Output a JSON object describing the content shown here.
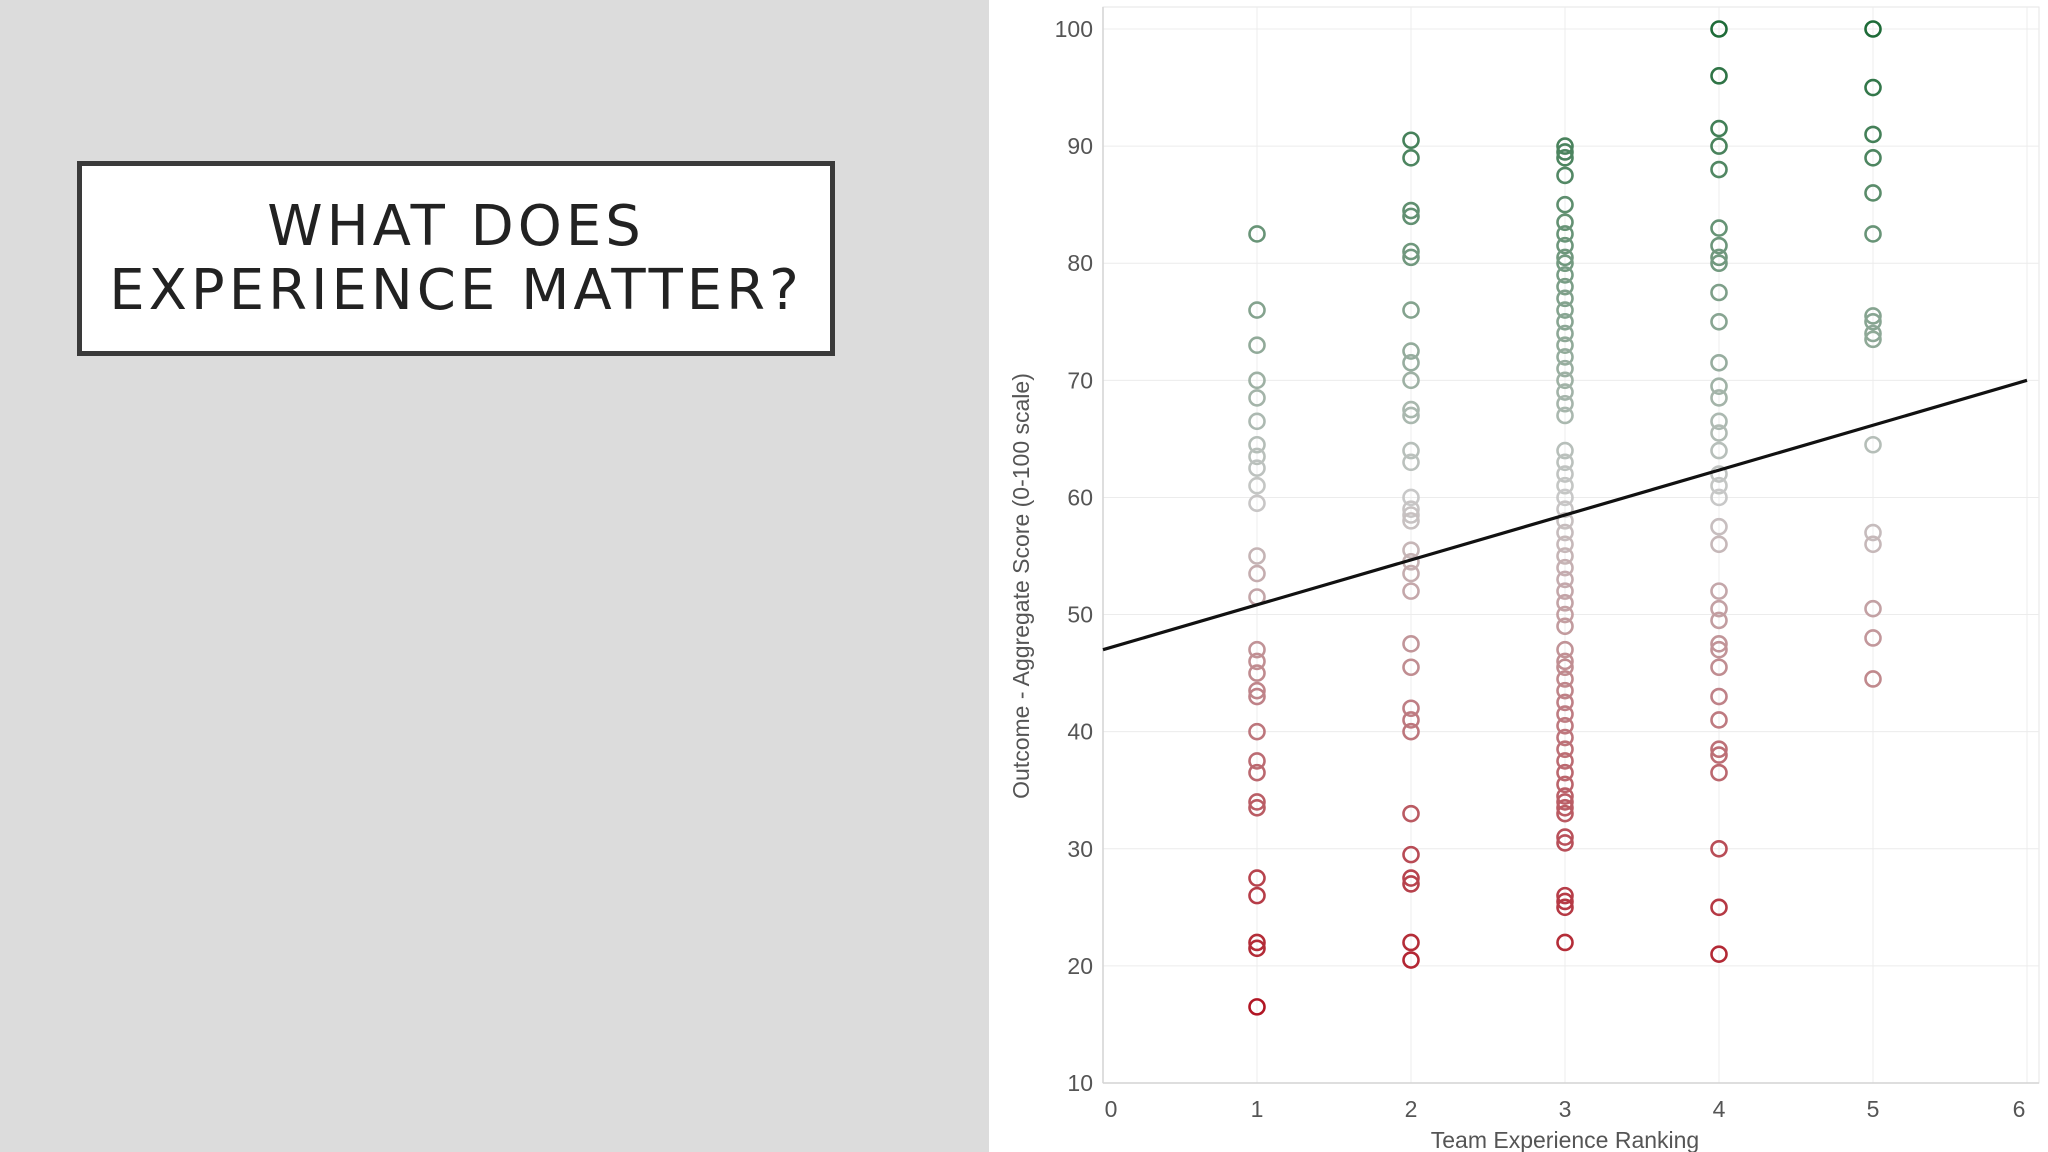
{
  "slide": {
    "title": "WHAT DOES\nEXPERIENCE MATTER?"
  },
  "chart_data": {
    "type": "scatter",
    "title": "",
    "xlabel": "Team Experience Ranking",
    "ylabel": "Outcome - Aggregate Score (0-100 scale)",
    "xlim": [
      0,
      6
    ],
    "ylim": [
      10,
      100
    ],
    "x_ticks": [
      0,
      1,
      2,
      3,
      4,
      5,
      6
    ],
    "y_ticks": [
      10,
      20,
      30,
      40,
      50,
      60,
      70,
      80,
      90,
      100
    ],
    "grid": true,
    "legend": "none",
    "marker": "hollow-circle",
    "color_scale": {
      "low": "#b0101e",
      "mid": "#c8c8c8",
      "high": "#1e6b38",
      "domain": [
        15,
        60,
        100
      ]
    },
    "trendline": {
      "x": [
        0,
        6
      ],
      "y": [
        47,
        70
      ],
      "color": "#111111"
    },
    "points": [
      {
        "x": 1,
        "y": 82.5
      },
      {
        "x": 1,
        "y": 76
      },
      {
        "x": 1,
        "y": 73
      },
      {
        "x": 1,
        "y": 70
      },
      {
        "x": 1,
        "y": 68.5
      },
      {
        "x": 1,
        "y": 66.5
      },
      {
        "x": 1,
        "y": 64.5
      },
      {
        "x": 1,
        "y": 63.5
      },
      {
        "x": 1,
        "y": 62.5
      },
      {
        "x": 1,
        "y": 61
      },
      {
        "x": 1,
        "y": 59.5
      },
      {
        "x": 1,
        "y": 55
      },
      {
        "x": 1,
        "y": 53.5
      },
      {
        "x": 1,
        "y": 51.5
      },
      {
        "x": 1,
        "y": 47
      },
      {
        "x": 1,
        "y": 46
      },
      {
        "x": 1,
        "y": 45
      },
      {
        "x": 1,
        "y": 43.5
      },
      {
        "x": 1,
        "y": 43
      },
      {
        "x": 1,
        "y": 40
      },
      {
        "x": 1,
        "y": 37.5
      },
      {
        "x": 1,
        "y": 36.5
      },
      {
        "x": 1,
        "y": 34
      },
      {
        "x": 1,
        "y": 33.5
      },
      {
        "x": 1,
        "y": 27.5
      },
      {
        "x": 1,
        "y": 26
      },
      {
        "x": 1,
        "y": 22
      },
      {
        "x": 1,
        "y": 21.5
      },
      {
        "x": 1,
        "y": 16.5
      },
      {
        "x": 2,
        "y": 90.5
      },
      {
        "x": 2,
        "y": 89
      },
      {
        "x": 2,
        "y": 84.5
      },
      {
        "x": 2,
        "y": 84
      },
      {
        "x": 2,
        "y": 81
      },
      {
        "x": 2,
        "y": 80.5
      },
      {
        "x": 2,
        "y": 76
      },
      {
        "x": 2,
        "y": 72.5
      },
      {
        "x": 2,
        "y": 71.5
      },
      {
        "x": 2,
        "y": 70
      },
      {
        "x": 2,
        "y": 67.5
      },
      {
        "x": 2,
        "y": 67
      },
      {
        "x": 2,
        "y": 64
      },
      {
        "x": 2,
        "y": 63
      },
      {
        "x": 2,
        "y": 60
      },
      {
        "x": 2,
        "y": 59
      },
      {
        "x": 2,
        "y": 58.5
      },
      {
        "x": 2,
        "y": 58
      },
      {
        "x": 2,
        "y": 55.5
      },
      {
        "x": 2,
        "y": 54.5
      },
      {
        "x": 2,
        "y": 53.5
      },
      {
        "x": 2,
        "y": 52
      },
      {
        "x": 2,
        "y": 47.5
      },
      {
        "x": 2,
        "y": 45.5
      },
      {
        "x": 2,
        "y": 42
      },
      {
        "x": 2,
        "y": 41
      },
      {
        "x": 2,
        "y": 40
      },
      {
        "x": 2,
        "y": 33
      },
      {
        "x": 2,
        "y": 29.5
      },
      {
        "x": 2,
        "y": 27.5
      },
      {
        "x": 2,
        "y": 27
      },
      {
        "x": 2,
        "y": 22
      },
      {
        "x": 2,
        "y": 20.5
      },
      {
        "x": 3,
        "y": 90
      },
      {
        "x": 3,
        "y": 89.5
      },
      {
        "x": 3,
        "y": 89
      },
      {
        "x": 3,
        "y": 87.5
      },
      {
        "x": 3,
        "y": 85
      },
      {
        "x": 3,
        "y": 83.5
      },
      {
        "x": 3,
        "y": 82.5
      },
      {
        "x": 3,
        "y": 81.5
      },
      {
        "x": 3,
        "y": 80.5
      },
      {
        "x": 3,
        "y": 80
      },
      {
        "x": 3,
        "y": 79
      },
      {
        "x": 3,
        "y": 78
      },
      {
        "x": 3,
        "y": 77
      },
      {
        "x": 3,
        "y": 76
      },
      {
        "x": 3,
        "y": 75
      },
      {
        "x": 3,
        "y": 74
      },
      {
        "x": 3,
        "y": 73
      },
      {
        "x": 3,
        "y": 72
      },
      {
        "x": 3,
        "y": 71
      },
      {
        "x": 3,
        "y": 70
      },
      {
        "x": 3,
        "y": 69
      },
      {
        "x": 3,
        "y": 68
      },
      {
        "x": 3,
        "y": 67
      },
      {
        "x": 3,
        "y": 64
      },
      {
        "x": 3,
        "y": 63
      },
      {
        "x": 3,
        "y": 62
      },
      {
        "x": 3,
        "y": 61
      },
      {
        "x": 3,
        "y": 60
      },
      {
        "x": 3,
        "y": 59
      },
      {
        "x": 3,
        "y": 58
      },
      {
        "x": 3,
        "y": 57
      },
      {
        "x": 3,
        "y": 56
      },
      {
        "x": 3,
        "y": 55
      },
      {
        "x": 3,
        "y": 54
      },
      {
        "x": 3,
        "y": 53
      },
      {
        "x": 3,
        "y": 52
      },
      {
        "x": 3,
        "y": 51
      },
      {
        "x": 3,
        "y": 50
      },
      {
        "x": 3,
        "y": 49
      },
      {
        "x": 3,
        "y": 47
      },
      {
        "x": 3,
        "y": 46
      },
      {
        "x": 3,
        "y": 45.5
      },
      {
        "x": 3,
        "y": 44.5
      },
      {
        "x": 3,
        "y": 43.5
      },
      {
        "x": 3,
        "y": 42.5
      },
      {
        "x": 3,
        "y": 41.5
      },
      {
        "x": 3,
        "y": 40.5
      },
      {
        "x": 3,
        "y": 39.5
      },
      {
        "x": 3,
        "y": 38.5
      },
      {
        "x": 3,
        "y": 37.5
      },
      {
        "x": 3,
        "y": 36.5
      },
      {
        "x": 3,
        "y": 35.5
      },
      {
        "x": 3,
        "y": 34.5
      },
      {
        "x": 3,
        "y": 34
      },
      {
        "x": 3,
        "y": 33.5
      },
      {
        "x": 3,
        "y": 33
      },
      {
        "x": 3,
        "y": 31
      },
      {
        "x": 3,
        "y": 30.5
      },
      {
        "x": 3,
        "y": 26
      },
      {
        "x": 3,
        "y": 25.5
      },
      {
        "x": 3,
        "y": 25
      },
      {
        "x": 3,
        "y": 22
      },
      {
        "x": 4,
        "y": 100
      },
      {
        "x": 4,
        "y": 96
      },
      {
        "x": 4,
        "y": 91.5
      },
      {
        "x": 4,
        "y": 90
      },
      {
        "x": 4,
        "y": 88
      },
      {
        "x": 4,
        "y": 83
      },
      {
        "x": 4,
        "y": 81.5
      },
      {
        "x": 4,
        "y": 80.5
      },
      {
        "x": 4,
        "y": 80
      },
      {
        "x": 4,
        "y": 77.5
      },
      {
        "x": 4,
        "y": 75
      },
      {
        "x": 4,
        "y": 71.5
      },
      {
        "x": 4,
        "y": 69.5
      },
      {
        "x": 4,
        "y": 68.5
      },
      {
        "x": 4,
        "y": 66.5
      },
      {
        "x": 4,
        "y": 65.5
      },
      {
        "x": 4,
        "y": 64
      },
      {
        "x": 4,
        "y": 62
      },
      {
        "x": 4,
        "y": 61
      },
      {
        "x": 4,
        "y": 60
      },
      {
        "x": 4,
        "y": 57.5
      },
      {
        "x": 4,
        "y": 56
      },
      {
        "x": 4,
        "y": 52
      },
      {
        "x": 4,
        "y": 50.5
      },
      {
        "x": 4,
        "y": 49.5
      },
      {
        "x": 4,
        "y": 47.5
      },
      {
        "x": 4,
        "y": 47
      },
      {
        "x": 4,
        "y": 45.5
      },
      {
        "x": 4,
        "y": 43
      },
      {
        "x": 4,
        "y": 41
      },
      {
        "x": 4,
        "y": 38.5
      },
      {
        "x": 4,
        "y": 38
      },
      {
        "x": 4,
        "y": 36.5
      },
      {
        "x": 4,
        "y": 30
      },
      {
        "x": 4,
        "y": 25
      },
      {
        "x": 4,
        "y": 21
      },
      {
        "x": 5,
        "y": 100
      },
      {
        "x": 5,
        "y": 95
      },
      {
        "x": 5,
        "y": 91
      },
      {
        "x": 5,
        "y": 89
      },
      {
        "x": 5,
        "y": 86
      },
      {
        "x": 5,
        "y": 82.5
      },
      {
        "x": 5,
        "y": 75.5
      },
      {
        "x": 5,
        "y": 75
      },
      {
        "x": 5,
        "y": 74
      },
      {
        "x": 5,
        "y": 73.5
      },
      {
        "x": 5,
        "y": 64.5
      },
      {
        "x": 5,
        "y": 57
      },
      {
        "x": 5,
        "y": 56
      },
      {
        "x": 5,
        "y": 50.5
      },
      {
        "x": 5,
        "y": 48
      },
      {
        "x": 5,
        "y": 44.5
      }
    ]
  }
}
